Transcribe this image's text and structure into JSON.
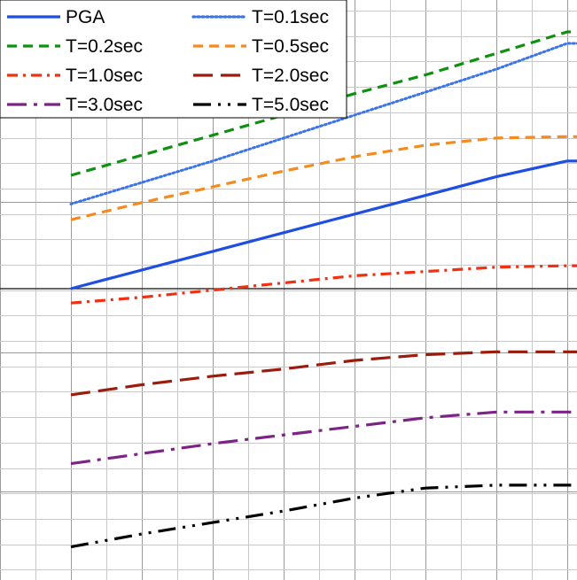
{
  "chart_data": {
    "type": "line",
    "title": "",
    "xlabel": "",
    "ylabel": "",
    "x": [
      1,
      2,
      3,
      4,
      5,
      6,
      7,
      8
    ],
    "grid": true,
    "legend_placement": "top-left",
    "series": [
      {
        "name": "PGA",
        "color": "#1f4fe0",
        "style": "solid",
        "values": [
          0.0,
          0.13,
          0.26,
          0.39,
          0.52,
          0.65,
          0.78,
          0.89
        ]
      },
      {
        "name": "T=0.1sec",
        "color": "#3b73e8",
        "style": "dotted",
        "values": [
          0.59,
          0.74,
          0.89,
          1.05,
          1.21,
          1.37,
          1.53,
          1.71
        ]
      },
      {
        "name": "T=0.2sec",
        "color": "#109010",
        "style": "dash",
        "values": [
          0.79,
          0.93,
          1.07,
          1.21,
          1.36,
          1.49,
          1.64,
          1.79
        ]
      },
      {
        "name": "T=0.5sec",
        "color": "#f58a1f",
        "style": "dash",
        "values": [
          0.48,
          0.6,
          0.71,
          0.82,
          0.92,
          1.0,
          1.05,
          1.06
        ]
      },
      {
        "name": "T=1.0sec",
        "color": "#f03010",
        "style": "dashdot",
        "values": [
          -0.1,
          -0.06,
          -0.01,
          0.04,
          0.09,
          0.12,
          0.15,
          0.16
        ]
      },
      {
        "name": "T=2.0sec",
        "color": "#9b1c0c",
        "style": "longdash",
        "values": [
          -0.74,
          -0.67,
          -0.61,
          -0.56,
          -0.5,
          -0.46,
          -0.44,
          -0.44
        ]
      },
      {
        "name": "T=3.0sec",
        "color": "#7b2486",
        "style": "longdashdot",
        "values": [
          -1.22,
          -1.15,
          -1.08,
          -1.02,
          -0.96,
          -0.9,
          -0.86,
          -0.86
        ]
      },
      {
        "name": "T=5.0sec",
        "color": "#000000",
        "style": "dashdotdot",
        "values": [
          -1.8,
          -1.71,
          -1.63,
          -1.55,
          -1.46,
          -1.39,
          -1.37,
          -1.37
        ]
      }
    ]
  }
}
